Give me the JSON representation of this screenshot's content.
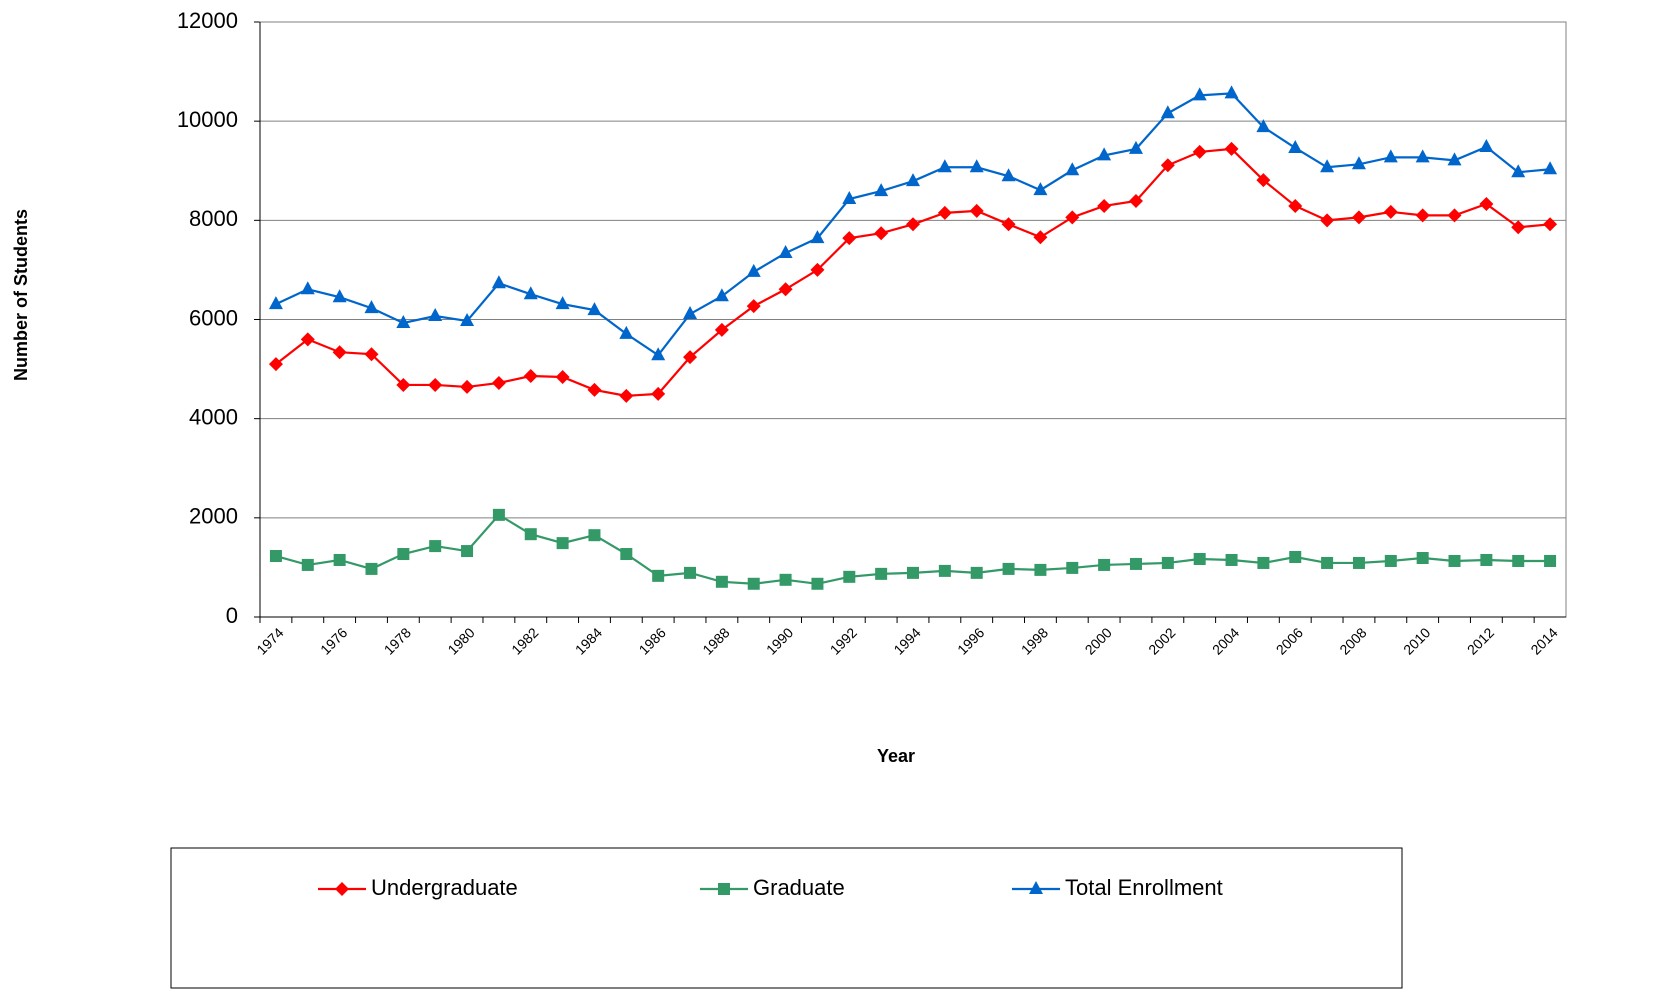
{
  "chart_data": {
    "type": "line",
    "x_label": "Year",
    "y_label": "Number of Students",
    "categories": [
      "1974",
      null,
      "1976",
      null,
      "1978",
      null,
      "1980",
      null,
      "1982",
      null,
      "1984",
      null,
      "1986",
      null,
      "1988",
      null,
      "1990",
      null,
      "1992",
      null,
      "1994",
      null,
      "1996",
      null,
      "1998",
      null,
      "2000",
      null,
      "2002",
      null,
      "2004",
      null,
      "2006",
      null,
      "2008",
      null,
      "2010",
      null,
      "2012",
      null,
      "2014"
    ],
    "series": [
      {
        "name": "Undergraduate",
        "color": "#ff0000",
        "marker": "diamond",
        "values": [
          5100,
          5600,
          5340,
          5300,
          4680,
          4680,
          4640,
          4720,
          4860,
          4840,
          4580,
          4460,
          4500,
          5240,
          5790,
          6270,
          6610,
          7000,
          7640,
          7740,
          7920,
          8150,
          8190,
          7920,
          7660,
          8060,
          8290,
          8390,
          9110,
          9380,
          9440,
          8810,
          8290,
          8000,
          8060,
          8170,
          8100,
          8100,
          8330,
          7860,
          7920
        ]
      },
      {
        "name": "Graduate",
        "color": "#339966",
        "marker": "square",
        "values": [
          1230,
          1050,
          1150,
          970,
          1270,
          1430,
          1330,
          2060,
          1670,
          1490,
          1650,
          1270,
          830,
          890,
          710,
          670,
          750,
          670,
          810,
          870,
          890,
          930,
          890,
          970,
          950,
          990,
          1050,
          1070,
          1090,
          1170,
          1150,
          1090,
          1210,
          1090,
          1090,
          1130,
          1190,
          1130,
          1150,
          1130,
          1130
        ]
      },
      {
        "name": "Total Enrollment",
        "color": "#0066cc",
        "marker": "triangle",
        "values": [
          6310,
          6610,
          6450,
          6230,
          5930,
          6070,
          5970,
          6730,
          6510,
          6310,
          6190,
          5710,
          5280,
          6110,
          6470,
          6960,
          7340,
          7640,
          8430,
          8590,
          8790,
          9070,
          9070,
          8890,
          8610,
          9010,
          9310,
          9440,
          10160,
          10520,
          10560,
          9880,
          9460,
          9070,
          9130,
          9270,
          9270,
          9210,
          9480,
          8970,
          9030
        ]
      }
    ],
    "ylim": [
      0,
      12000
    ],
    "yticks": [
      0,
      2000,
      4000,
      6000,
      8000,
      10000,
      12000
    ],
    "grid": true,
    "legend": "bottom"
  }
}
